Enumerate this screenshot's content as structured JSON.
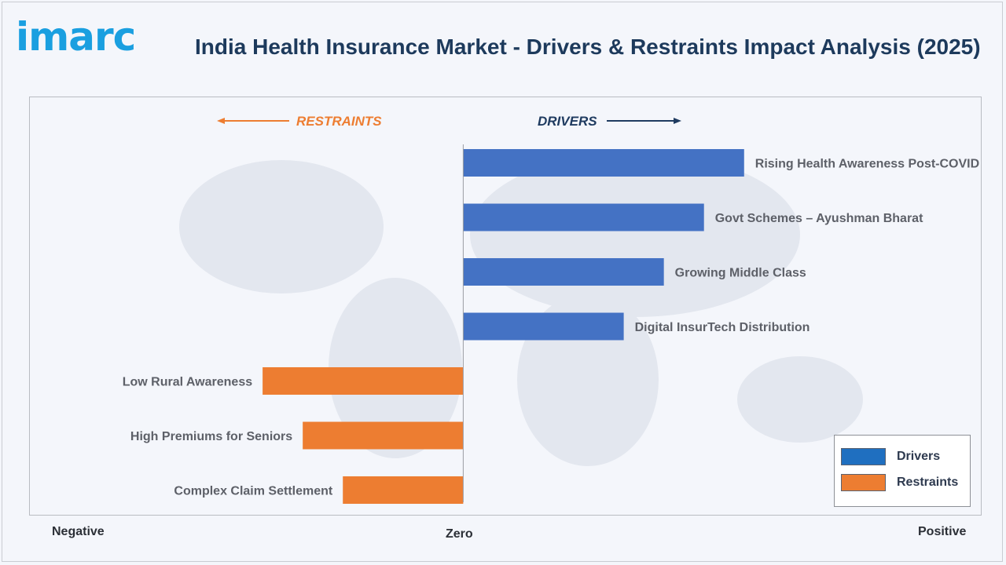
{
  "brand": {
    "logo_text": "imarc"
  },
  "header": {
    "title": "India Health Insurance Market - Drivers & Restraints Impact Analysis (2025)"
  },
  "axis": {
    "negative_label": "Negative",
    "zero_label": "Zero",
    "positive_label": "Positive"
  },
  "directions": {
    "restraints_label": "RESTRAINTS",
    "drivers_label": "DRIVERS"
  },
  "colors": {
    "drivers": "#4472c4",
    "restraints": "#ed7d31",
    "restraints_text": "#ed7d31",
    "drivers_text": "#1f3b60"
  },
  "legend": {
    "items": [
      {
        "label": "Drivers",
        "color": "#1f6fc0"
      },
      {
        "label": "Restraints",
        "color": "#ed7d31"
      }
    ]
  },
  "chart_data": {
    "type": "bar",
    "orientation": "horizontal",
    "categories": [
      "Rising Health Awareness Post-COVID",
      "Govt Schemes – Ayushman Bharat",
      "Growing Middle Class",
      "Digital InsurTech Distribution",
      "Low Rural Awareness",
      "High Premiums for Seniors",
      "Complex Claim Settlement"
    ],
    "series": [
      {
        "name": "Drivers",
        "values": [
          7,
          6,
          5,
          4,
          null,
          null,
          null
        ]
      },
      {
        "name": "Restraints",
        "values": [
          null,
          null,
          null,
          null,
          -5,
          -4,
          -3
        ]
      }
    ],
    "xlim": [
      -10.8,
      12.9
    ],
    "legend_position": "bottom-right",
    "grid": false
  }
}
